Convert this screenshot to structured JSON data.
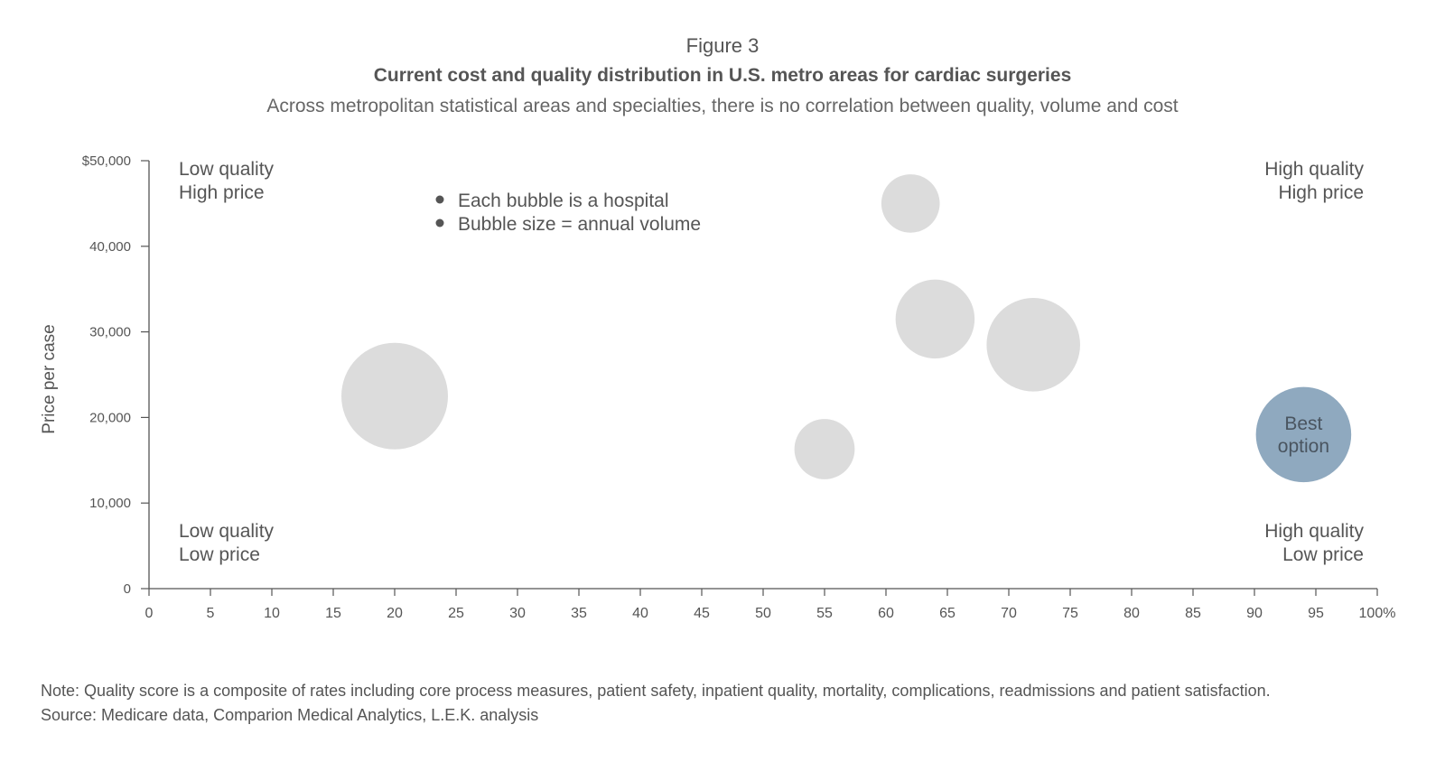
{
  "header": {
    "figure_label": "Figure 3",
    "title": "Current cost and quality distribution in U.S. metro areas for cardiac surgeries",
    "subtitle": "Across metropolitan statistical areas and specialties, there is no correlation between quality, volume and cost"
  },
  "footer": {
    "note": "Note: Quality score is a composite of rates including core process measures, patient safety, inpatient quality, mortality, complications, readmissions and patient satisfaction.",
    "source": "Source: Medicare data, Comparion Medical Analytics, L.E.K. analysis"
  },
  "chart_data": {
    "type": "scatter",
    "title": "Current cost and quality distribution in U.S. metro areas for cardiac surgeries",
    "xlabel": "",
    "ylabel": "Price per case",
    "xlim": [
      0,
      100
    ],
    "ylim": [
      0,
      50000
    ],
    "x_ticks": [
      0,
      5,
      10,
      15,
      20,
      25,
      30,
      35,
      40,
      45,
      50,
      55,
      60,
      65,
      70,
      75,
      80,
      85,
      90,
      95,
      100
    ],
    "x_tick_labels": [
      "0",
      "5",
      "10",
      "15",
      "20",
      "25",
      "30",
      "35",
      "40",
      "45",
      "50",
      "55",
      "60",
      "65",
      "70",
      "75",
      "80",
      "85",
      "90",
      "95",
      "100%"
    ],
    "y_ticks": [
      0,
      10000,
      20000,
      30000,
      40000,
      50000
    ],
    "y_tick_labels": [
      "0",
      "10,000",
      "20,000",
      "30,000",
      "40,000",
      "$50,000"
    ],
    "grid": false,
    "bubble_size_meaning": "annual volume (relative)",
    "points": [
      {
        "x": 20,
        "y": 22500,
        "size": 1.0,
        "color": "#dcdcdc"
      },
      {
        "x": 55,
        "y": 16300,
        "size": 0.32,
        "color": "#dcdcdc"
      },
      {
        "x": 62,
        "y": 45000,
        "size": 0.3,
        "color": "#dcdcdc"
      },
      {
        "x": 64,
        "y": 31500,
        "size": 0.55,
        "color": "#dcdcdc"
      },
      {
        "x": 72,
        "y": 28500,
        "size": 0.77,
        "color": "#dcdcdc"
      },
      {
        "x": 94,
        "y": 18000,
        "size": 0.8,
        "color": "#8fa9bf",
        "label_lines": [
          "Best",
          "option"
        ]
      }
    ],
    "quadrant_labels": [
      {
        "position": "top-left",
        "lines": [
          "Low quality",
          "High price"
        ]
      },
      {
        "position": "top-right",
        "lines": [
          "High quality",
          "High price"
        ]
      },
      {
        "position": "bottom-left",
        "lines": [
          "Low quality",
          "Low price"
        ]
      },
      {
        "position": "bottom-right",
        "lines": [
          "High quality",
          "Low price"
        ]
      }
    ],
    "legend_notes": [
      "Each bubble is a hospital",
      "Bubble size = annual volume"
    ],
    "axis_color": "#555555",
    "text_color": "#555555"
  }
}
